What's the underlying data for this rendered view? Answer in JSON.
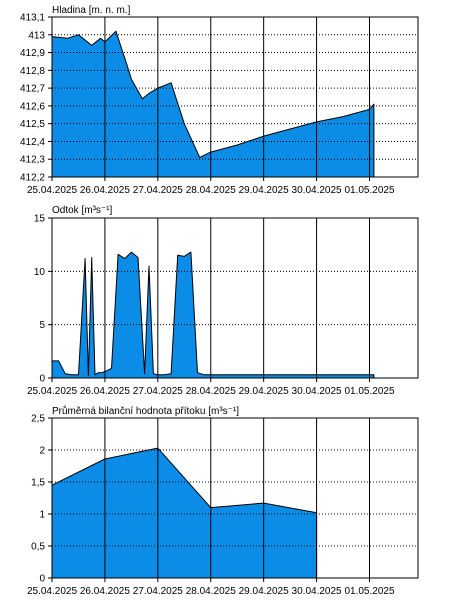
{
  "chart_data": [
    {
      "type": "area",
      "title": "Hladina [m. n. m.]",
      "x": [
        "2025-04-25 00:00",
        "2025-04-25 07:00",
        "2025-04-25 12:00",
        "2025-04-25 18:00",
        "2025-04-25 22:00",
        "2025-04-26 00:00",
        "2025-04-26 05:00",
        "2025-04-26 10:00",
        "2025-04-26 12:00",
        "2025-04-26 17:00",
        "2025-04-26 20:00",
        "2025-04-27 00:00",
        "2025-04-27 06:00",
        "2025-04-27 12:00",
        "2025-04-27 19:00",
        "2025-04-28 00:00",
        "2025-04-28 12:00",
        "2025-04-29 00:00",
        "2025-04-29 12:00",
        "2025-04-30 00:00",
        "2025-04-30 12:00",
        "2025-05-01 00:00",
        "2025-05-01 02:00"
      ],
      "series": [
        {
          "values": [
            412.99,
            412.98,
            413.0,
            412.94,
            412.98,
            412.96,
            413.02,
            412.83,
            412.75,
            412.64,
            412.67,
            412.7,
            412.73,
            412.5,
            412.31,
            412.34,
            412.38,
            412.43,
            412.47,
            412.51,
            412.54,
            412.58,
            412.61
          ]
        }
      ],
      "ylim": [
        412.2,
        413.1
      ],
      "yticks": [
        "412,2",
        "412,3",
        "412,4",
        "412,5",
        "412,6",
        "412,7",
        "412,8",
        "412,9",
        "413",
        "413,1"
      ],
      "xlim": [
        "2025-04-25 00:00",
        "2025-05-01 22:00"
      ],
      "xticks": [
        "25.04.2025",
        "26.04.2025",
        "27.04.2025",
        "28.04.2025",
        "29.04.2025",
        "30.04.2025",
        "01.05.2025"
      ],
      "grid": {
        "vertical": true,
        "horizontal": "dotted"
      }
    },
    {
      "type": "area",
      "title": "Odtok [m³s⁻¹]",
      "x": [
        "2025-04-25 00:00",
        "2025-04-25 03:00",
        "2025-04-25 06:00",
        "2025-04-25 09:00",
        "2025-04-25 12:00",
        "2025-04-25 15:00",
        "2025-04-25 16:30",
        "2025-04-25 18:00",
        "2025-04-25 19:30",
        "2025-04-25 21:00",
        "2025-04-25 22:30",
        "2025-04-26 00:00",
        "2025-04-26 03:00",
        "2025-04-26 06:00",
        "2025-04-26 09:00",
        "2025-04-26 12:00",
        "2025-04-26 15:00",
        "2025-04-26 18:00",
        "2025-04-26 20:00",
        "2025-04-26 22:00",
        "2025-04-27 00:00",
        "2025-04-27 03:00",
        "2025-04-27 06:00",
        "2025-04-27 09:00",
        "2025-04-27 12:00",
        "2025-04-27 15:00",
        "2025-04-27 18:00",
        "2025-04-27 21:00",
        "2025-04-28 00:00",
        "2025-04-28 12:00",
        "2025-04-29 00:00",
        "2025-04-29 12:00",
        "2025-04-30 00:00",
        "2025-04-30 12:00",
        "2025-05-01 00:00",
        "2025-05-01 02:00"
      ],
      "series": [
        {
          "values": [
            1.6,
            1.6,
            0.4,
            0.3,
            0.3,
            11.2,
            0.2,
            11.3,
            0.3,
            0.5,
            0.5,
            0.6,
            0.9,
            11.6,
            11.2,
            11.8,
            11.3,
            0.4,
            10.5,
            0.4,
            0.3,
            0.3,
            0.4,
            11.5,
            11.4,
            11.8,
            0.5,
            0.3,
            0.3,
            0.3,
            0.3,
            0.3,
            0.3,
            0.3,
            0.3,
            0.3
          ]
        }
      ],
      "ylim": [
        0,
        15
      ],
      "yticks": [
        "0",
        "5",
        "10",
        "15"
      ],
      "xlim": [
        "2025-04-25 00:00",
        "2025-05-01 22:00"
      ],
      "xticks": [
        "25.04.2025",
        "26.04.2025",
        "27.04.2025",
        "28.04.2025",
        "29.04.2025",
        "30.04.2025",
        "01.05.2025"
      ],
      "grid": {
        "vertical": true,
        "horizontal": "dotted"
      }
    },
    {
      "type": "area",
      "title": "Průměrná bilanční hodnota přítoku   [m³s⁻¹]",
      "x": [
        "2025-04-25 00:00",
        "2025-04-26 00:00",
        "2025-04-27 00:00",
        "2025-04-28 00:00",
        "2025-04-29 00:00",
        "2025-04-30 00:00"
      ],
      "series": [
        {
          "values": [
            1.45,
            1.86,
            2.03,
            1.1,
            1.17,
            1.02
          ]
        }
      ],
      "ylim": [
        0,
        2.5
      ],
      "yticks": [
        "0",
        "0,5",
        "1",
        "1,5",
        "2",
        "2,5"
      ],
      "xlim": [
        "2025-04-25 00:00",
        "2025-05-01 22:00"
      ],
      "xticks": [
        "25.04.2025",
        "26.04.2025",
        "27.04.2025",
        "28.04.2025",
        "29.04.2025",
        "30.04.2025",
        "01.05.2025"
      ],
      "grid": {
        "vertical": true,
        "horizontal": "dotted"
      }
    }
  ],
  "colors": {
    "fill": "#0b8ce6",
    "stroke": "#000000"
  }
}
